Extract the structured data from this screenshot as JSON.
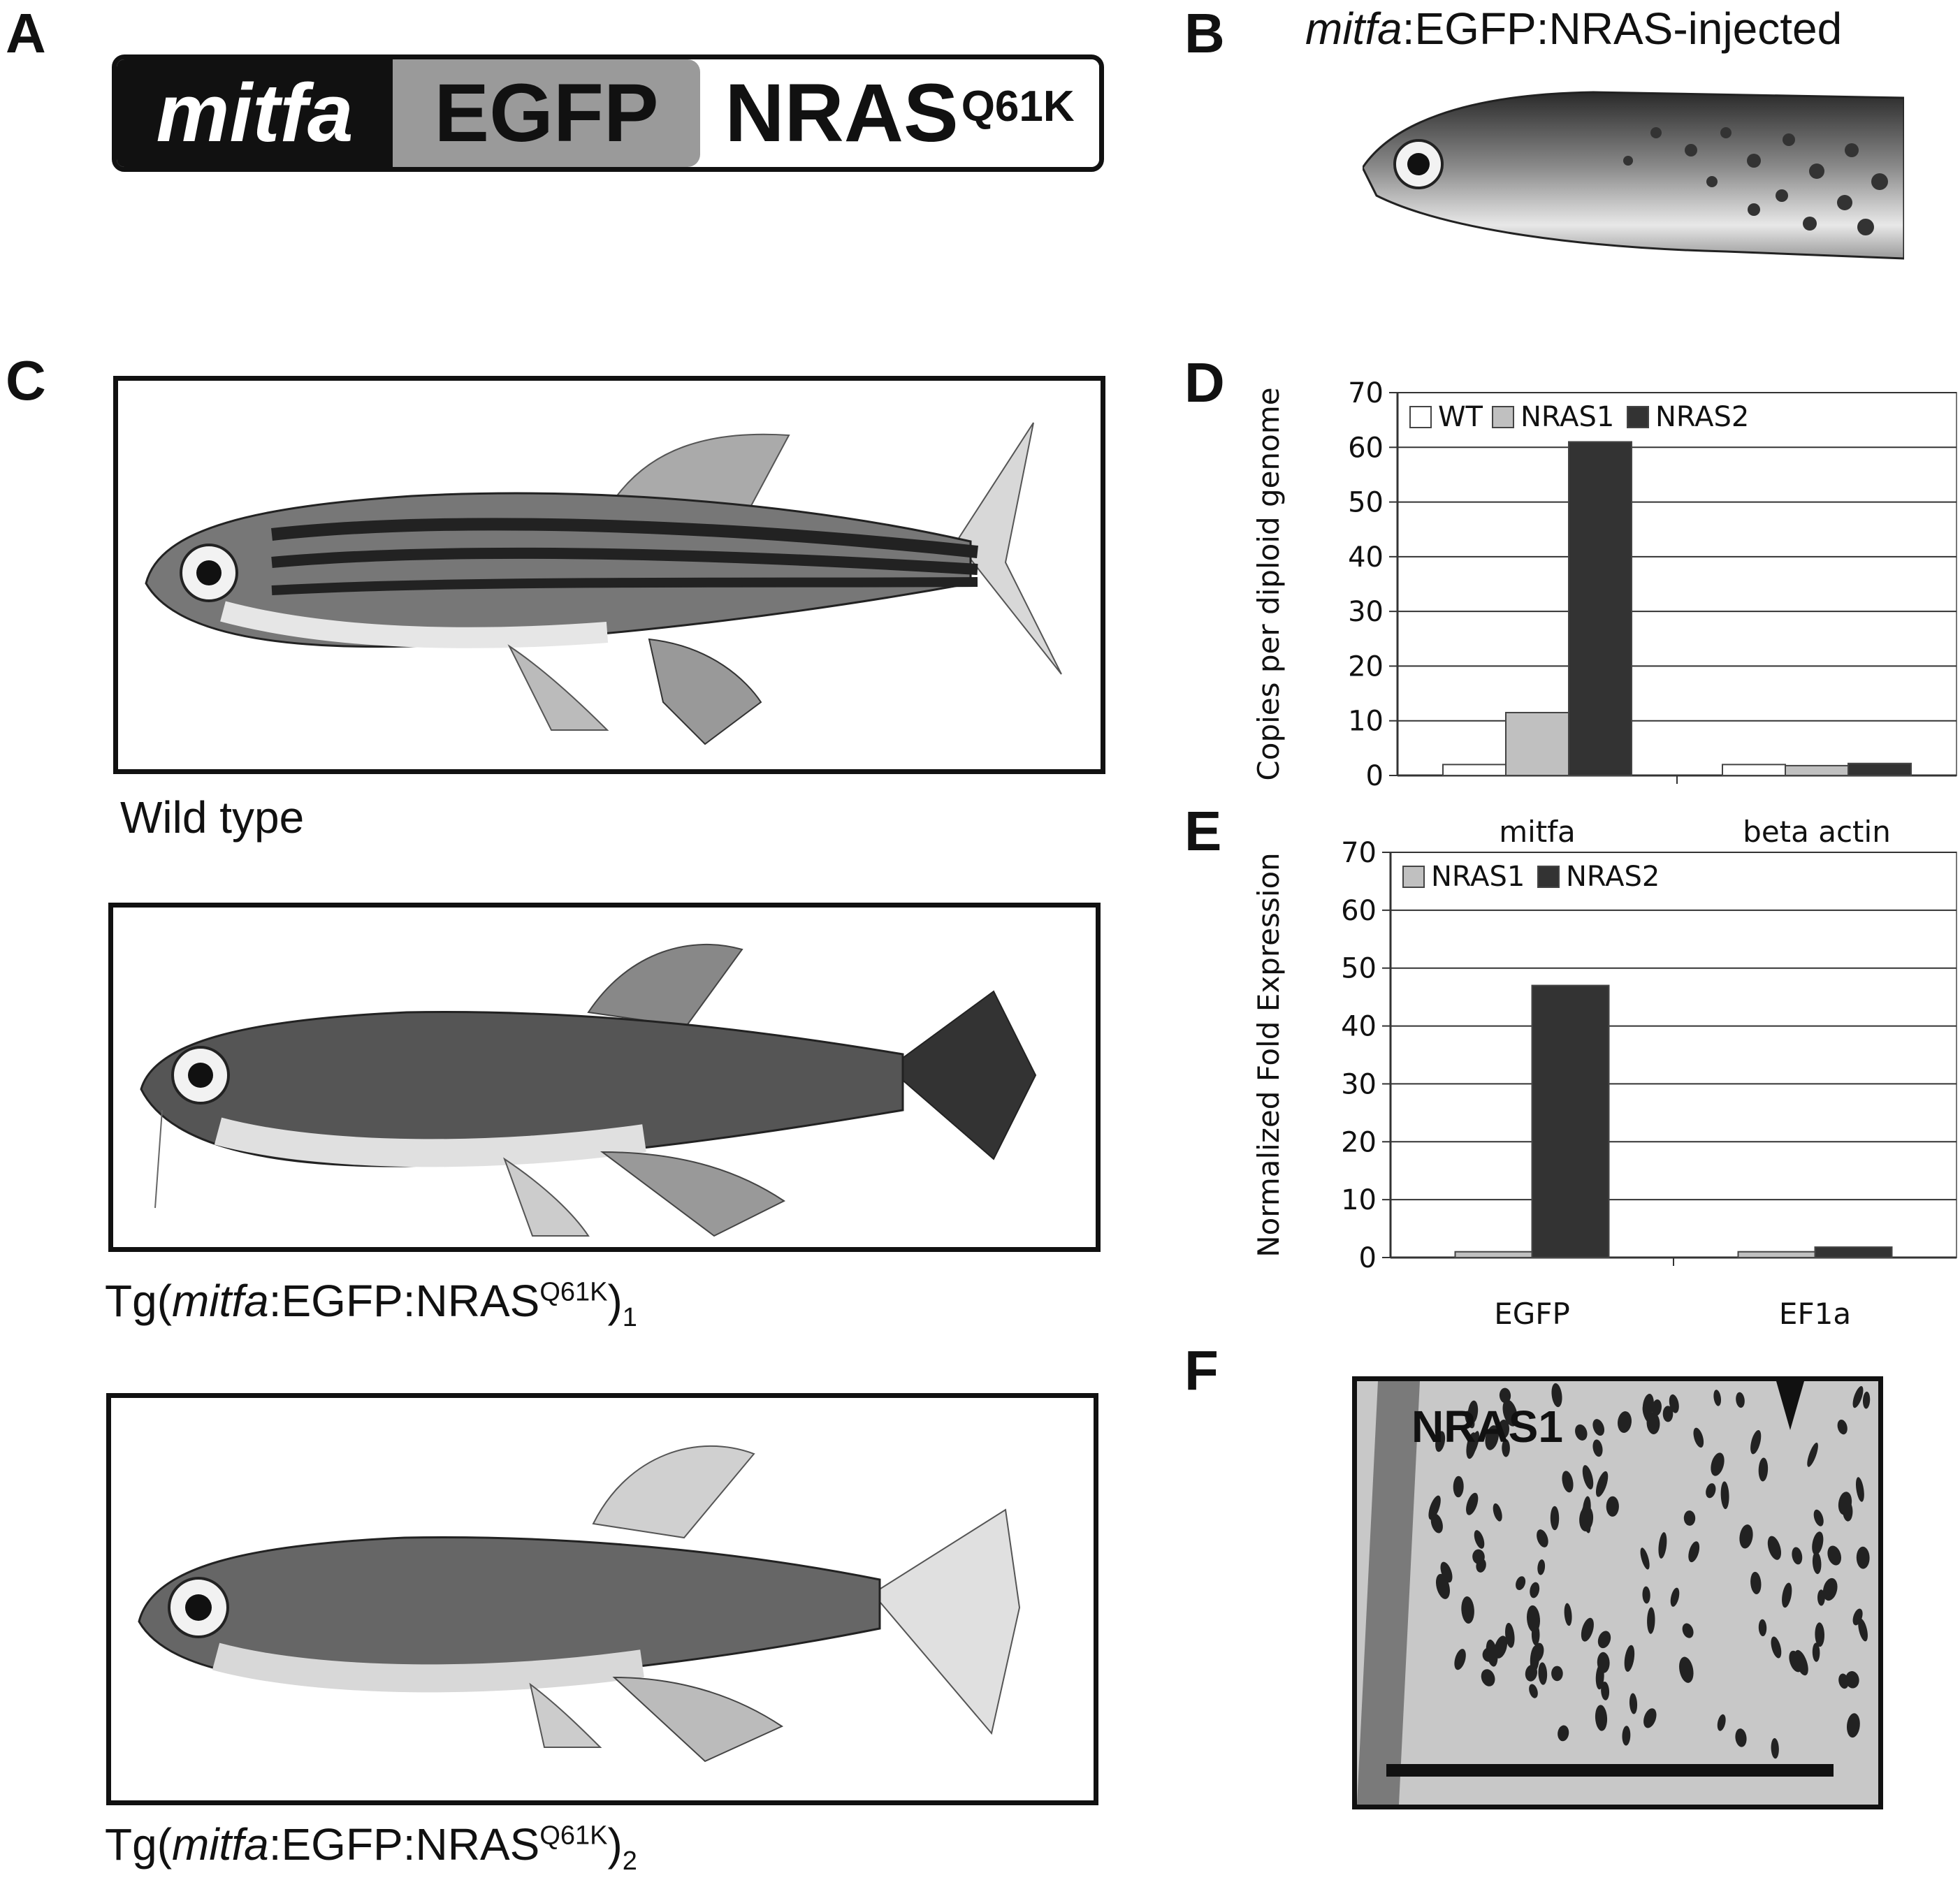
{
  "panels": {
    "A": {
      "letter": "A",
      "construct": {
        "promoter": "mitfa",
        "reporter": "EGFP",
        "gene": "NRAS",
        "mutation": "Q61K"
      }
    },
    "B": {
      "letter": "B",
      "title_italic": "mitfa",
      "title_rest": ":EGFP:NRAS-injected"
    },
    "C": {
      "letter": "C",
      "fish": [
        {
          "caption": "Wild type"
        },
        {
          "caption_prefix": "Tg(",
          "caption_italic": "mitfa",
          "caption_mid": ":EGFP:NRAS",
          "caption_sup": "Q61K",
          "caption_close": ")",
          "caption_sub": "1"
        },
        {
          "caption_prefix": "Tg(",
          "caption_italic": "mitfa",
          "caption_mid": ":EGFP:NRAS",
          "caption_sup": "Q61K",
          "caption_close": ")",
          "caption_sub": "2"
        }
      ]
    },
    "D": {
      "letter": "D"
    },
    "E": {
      "letter": "E"
    },
    "F": {
      "letter": "F",
      "label": "NRAS1"
    }
  },
  "colors": {
    "wt": "#ffffff",
    "nras1": "#c0c0c0",
    "nras2": "#333333",
    "egfp_segment": "#9a9a9a"
  },
  "chart_data": [
    {
      "panel": "D",
      "type": "bar",
      "ylabel": "Copies per diploid genome",
      "ylim": [
        0,
        70
      ],
      "yticks": [
        0,
        10,
        20,
        30,
        40,
        50,
        60,
        70
      ],
      "categories": [
        "mitfa",
        "beta actin"
      ],
      "series": [
        {
          "name": "WT",
          "color": "#ffffff",
          "values": [
            2,
            2
          ]
        },
        {
          "name": "NRAS1",
          "color": "#c0c0c0",
          "values": [
            11.5,
            1.8
          ]
        },
        {
          "name": "NRAS2",
          "color": "#333333",
          "values": [
            61,
            2.2
          ]
        }
      ],
      "legend": "top-left",
      "grid": true
    },
    {
      "panel": "E",
      "type": "bar",
      "ylabel": "Normalized Fold Expression",
      "ylim": [
        0,
        70
      ],
      "yticks": [
        0,
        10,
        20,
        30,
        40,
        50,
        60,
        70
      ],
      "categories": [
        "EGFP",
        "EF1a"
      ],
      "series": [
        {
          "name": "NRAS1",
          "color": "#c0c0c0",
          "values": [
            1,
            1
          ]
        },
        {
          "name": "NRAS2",
          "color": "#333333",
          "values": [
            47,
            1.8
          ]
        }
      ],
      "legend": "top-left",
      "grid": true
    }
  ]
}
